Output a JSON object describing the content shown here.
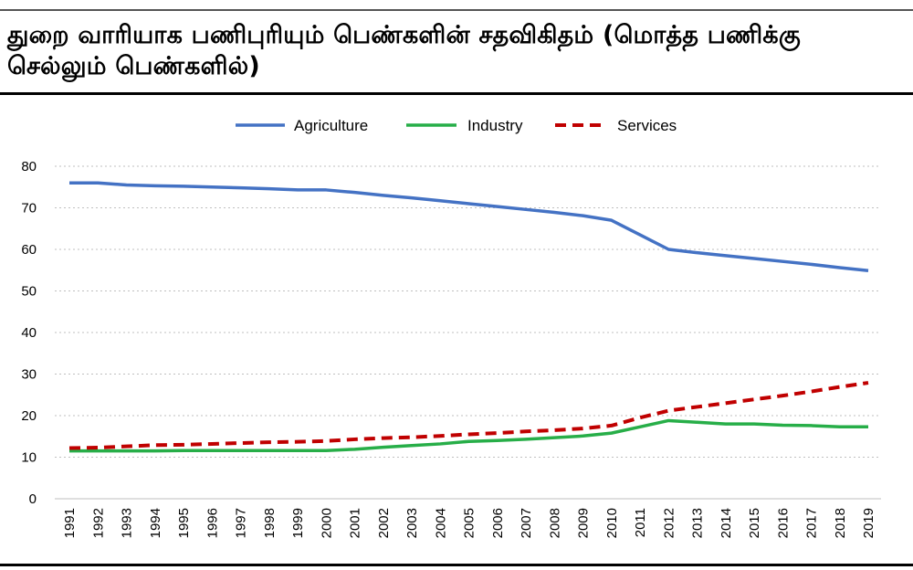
{
  "title": "துறை வாரியாக பணிபுரியும் பெண்களின் சதவிகிதம் (மொத்த பணிக்கு செல்லும் பெண்களில்)",
  "chart_data": {
    "type": "line",
    "title": "துறை வாரியாக பணிபுரியும் பெண்களின் சதவிகிதம் (மொத்த பணிக்கு செல்லும் பெண்களில்)",
    "xlabel": "",
    "ylabel": "",
    "ylim": [
      0,
      80
    ],
    "yticks": [
      0,
      10,
      20,
      30,
      40,
      50,
      60,
      70,
      80
    ],
    "grid": true,
    "legend_position": "top-center",
    "x": [
      "1991",
      "1992",
      "1993",
      "1994",
      "1995",
      "1996",
      "1997",
      "1998",
      "1999",
      "2000",
      "2001",
      "2002",
      "2003",
      "2004",
      "2005",
      "2006",
      "2007",
      "2008",
      "2009",
      "2010",
      "2011",
      "2012",
      "2013",
      "2014",
      "2015",
      "2016",
      "2017",
      "2018",
      "2019"
    ],
    "series": [
      {
        "name": "Agriculture",
        "color": "#4472C4",
        "style": "solid",
        "values": [
          76.0,
          76.0,
          75.5,
          75.3,
          75.2,
          75.0,
          74.8,
          74.6,
          74.3,
          74.3,
          73.7,
          73.0,
          72.4,
          71.7,
          71.0,
          70.3,
          69.6,
          68.9,
          68.1,
          67.0,
          63.5,
          60.0,
          59.2,
          58.5,
          57.8,
          57.1,
          56.4,
          55.6,
          54.9
        ]
      },
      {
        "name": "Industry",
        "color": "#27AE48",
        "style": "solid",
        "values": [
          11.5,
          11.5,
          11.5,
          11.5,
          11.6,
          11.6,
          11.6,
          11.6,
          11.6,
          11.6,
          11.9,
          12.4,
          12.8,
          13.2,
          13.8,
          14.0,
          14.3,
          14.7,
          15.1,
          15.8,
          17.3,
          18.8,
          18.4,
          18.0,
          18.0,
          17.7,
          17.6,
          17.3,
          17.3
        ]
      },
      {
        "name": "Services",
        "color": "#C00000",
        "style": "dashed",
        "values": [
          12.2,
          12.3,
          12.6,
          12.9,
          13.0,
          13.2,
          13.4,
          13.6,
          13.7,
          13.9,
          14.3,
          14.6,
          14.8,
          15.1,
          15.5,
          15.8,
          16.2,
          16.5,
          16.9,
          17.6,
          19.5,
          21.2,
          22.1,
          23.0,
          23.9,
          24.8,
          25.8,
          26.9,
          27.9
        ]
      }
    ]
  }
}
